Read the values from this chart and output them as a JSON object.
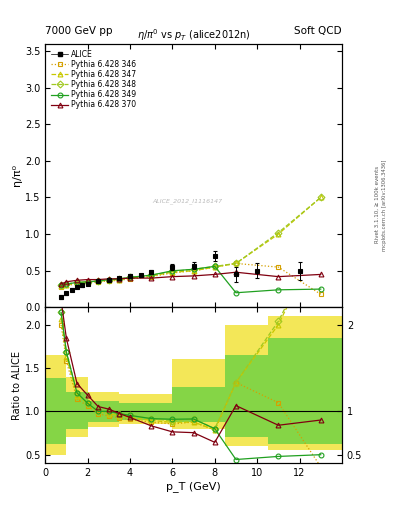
{
  "title_top": "7000 GeV pp",
  "title_right": "Soft QCD",
  "subtitle": "η/π⁰ vs p_T (alice2012n)",
  "ylabel_main": "η/π⁰",
  "ylabel_ratio": "Ratio to ALICE",
  "xlabel": "p_T (GeV)",
  "watermark": "ALICE_2012_I1116147",
  "right_label": "Rivet 3.1.10, ≥ 100k events",
  "mcplots_label": "mcplots.cern.ch [arXiv:1306.3436]",
  "alice_x": [
    0.75,
    1.0,
    1.25,
    1.5,
    1.75,
    2.0,
    2.5,
    3.0,
    3.5,
    4.0,
    4.5,
    5.0,
    6.0,
    7.0,
    8.0,
    9.0,
    10.0,
    12.0
  ],
  "alice_y": [
    0.14,
    0.19,
    0.24,
    0.28,
    0.3,
    0.32,
    0.36,
    0.38,
    0.4,
    0.43,
    0.44,
    0.48,
    0.55,
    0.57,
    0.7,
    0.45,
    0.5,
    0.5
  ],
  "alice_yerr": [
    0.03,
    0.02,
    0.02,
    0.02,
    0.02,
    0.02,
    0.02,
    0.02,
    0.02,
    0.02,
    0.02,
    0.03,
    0.04,
    0.05,
    0.07,
    0.1,
    0.1,
    0.12
  ],
  "p346_x": [
    0.75,
    1.0,
    1.5,
    2.0,
    2.5,
    3.0,
    3.5,
    4.0,
    5.0,
    6.0,
    7.0,
    8.0,
    9.0,
    11.0,
    13.0
  ],
  "p346_y": [
    0.28,
    0.3,
    0.32,
    0.34,
    0.35,
    0.36,
    0.37,
    0.39,
    0.42,
    0.47,
    0.5,
    0.55,
    0.6,
    0.55,
    0.18
  ],
  "p346_color": "#d4a000",
  "p347_x": [
    0.75,
    1.0,
    1.5,
    2.0,
    2.5,
    3.0,
    3.5,
    4.0,
    5.0,
    6.0,
    7.0,
    8.0,
    9.0,
    11.0,
    13.0
  ],
  "p347_y": [
    0.29,
    0.31,
    0.33,
    0.35,
    0.36,
    0.37,
    0.38,
    0.4,
    0.43,
    0.48,
    0.5,
    0.55,
    0.6,
    1.0,
    1.5
  ],
  "p347_color": "#c8c800",
  "p348_x": [
    0.75,
    1.0,
    1.5,
    2.0,
    2.5,
    3.0,
    3.5,
    4.0,
    5.0,
    6.0,
    7.0,
    8.0,
    9.0,
    11.0,
    13.0
  ],
  "p348_y": [
    0.3,
    0.32,
    0.34,
    0.35,
    0.36,
    0.38,
    0.39,
    0.41,
    0.44,
    0.49,
    0.52,
    0.56,
    0.6,
    1.02,
    1.5
  ],
  "p348_color": "#a0c820",
  "p349_x": [
    0.75,
    1.0,
    1.5,
    2.0,
    2.5,
    3.0,
    3.5,
    4.0,
    5.0,
    6.0,
    7.0,
    8.0,
    9.0,
    11.0,
    13.0
  ],
  "p349_y": [
    0.3,
    0.32,
    0.34,
    0.35,
    0.36,
    0.38,
    0.39,
    0.41,
    0.44,
    0.5,
    0.52,
    0.56,
    0.2,
    0.24,
    0.25
  ],
  "p349_color": "#20a020",
  "p370_x": [
    0.75,
    1.0,
    1.5,
    2.0,
    2.5,
    3.0,
    3.5,
    4.0,
    5.0,
    6.0,
    7.0,
    8.0,
    9.0,
    11.0,
    13.0
  ],
  "p370_y": [
    0.32,
    0.35,
    0.37,
    0.38,
    0.38,
    0.39,
    0.39,
    0.4,
    0.4,
    0.42,
    0.43,
    0.45,
    0.48,
    0.42,
    0.45
  ],
  "p370_color": "#800010",
  "ylim_main": [
    0.0,
    3.6
  ],
  "ylim_ratio": [
    0.4,
    2.2
  ],
  "band_yellow_xedges": [
    0.0,
    1.0,
    2.0,
    3.5,
    6.0,
    8.5,
    10.5,
    14.0
  ],
  "band_yellow_lo": [
    0.5,
    0.7,
    0.82,
    0.85,
    0.8,
    0.6,
    0.55,
    0.55
  ],
  "band_yellow_hi": [
    1.65,
    1.4,
    1.22,
    1.2,
    1.6,
    2.0,
    2.1,
    2.1
  ],
  "band_green_xedges": [
    0.0,
    1.0,
    2.0,
    3.5,
    6.0,
    8.5,
    10.5,
    14.0
  ],
  "band_green_lo": [
    0.62,
    0.8,
    0.88,
    0.9,
    0.88,
    0.7,
    0.62,
    0.62
  ],
  "band_green_hi": [
    1.38,
    1.22,
    1.12,
    1.1,
    1.28,
    1.65,
    1.85,
    1.85
  ]
}
